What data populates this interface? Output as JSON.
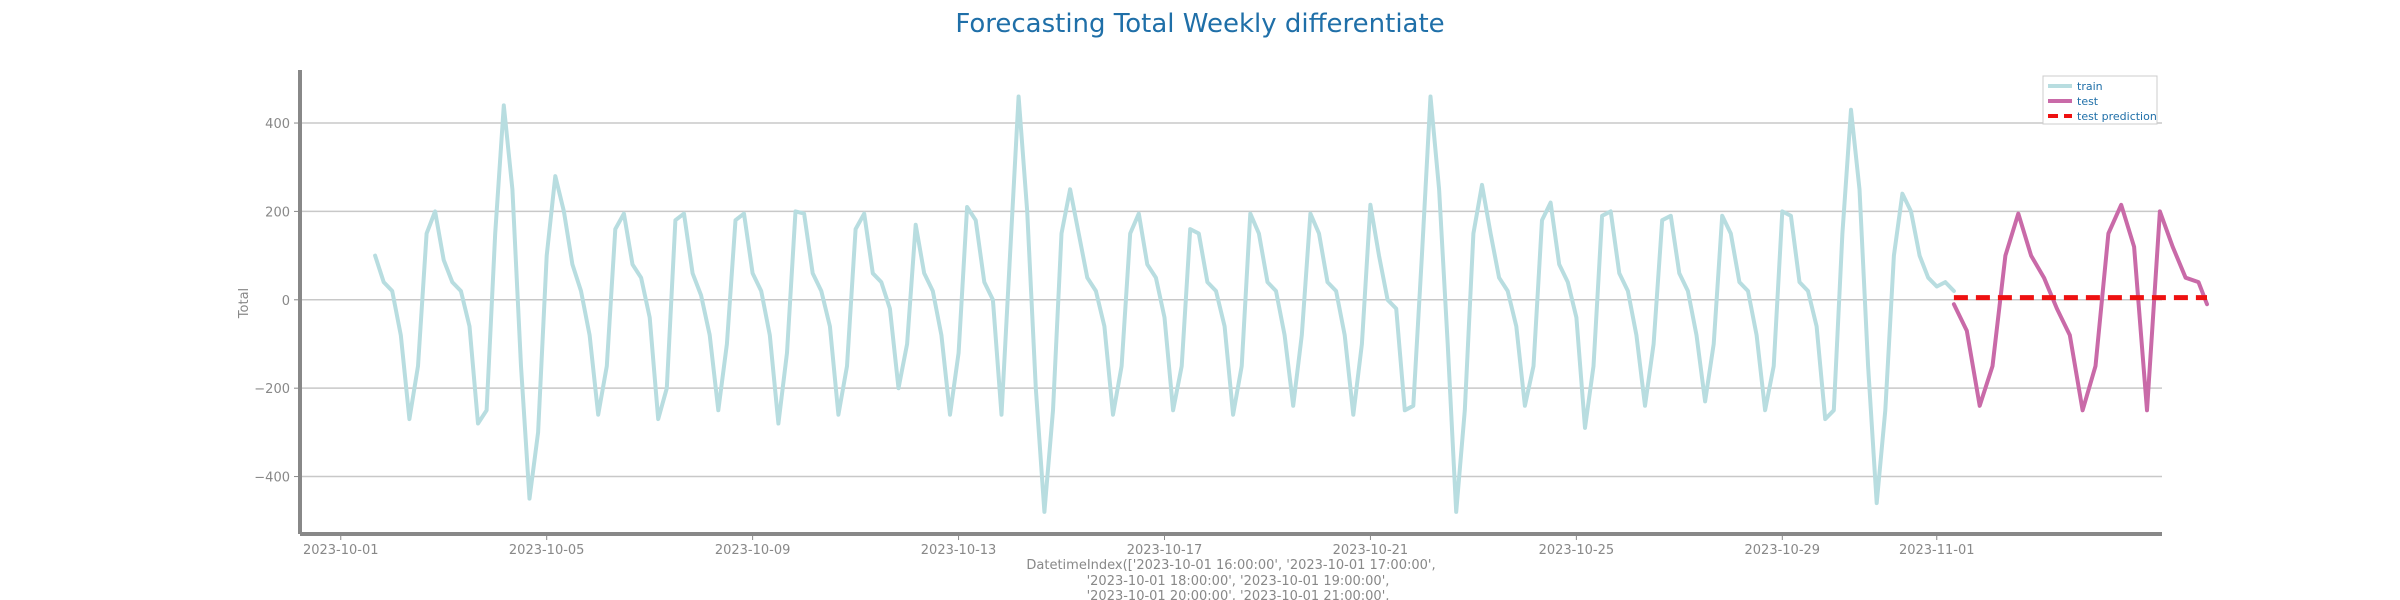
{
  "chart_data": {
    "type": "line",
    "title": "Forecasting Total Weekly differentiate",
    "ylabel": "Total",
    "xlabel_lines": [
      "DatetimeIndex(['2023-10-01 16:00:00', '2023-10-01 17:00:00',",
      "'2023-10-01 18:00:00', '2023-10-01 19:00:00',",
      "'2023-10-01 20:00:00', '2023-10-01 21:00:00',"
    ],
    "x_ticks": [
      "2023-10-01",
      "2023-10-05",
      "2023-10-09",
      "2023-10-13",
      "2023-10-17",
      "2023-10-21",
      "2023-10-25",
      "2023-10-29",
      "2023-11-01"
    ],
    "y_ticks": [
      -400,
      -200,
      0,
      200,
      400
    ],
    "xlim": [
      "2023-09-30T05:00:00",
      "2023-11-05T09:00:00"
    ],
    "ylim": [
      -530,
      520
    ],
    "grid": "horizontal",
    "legend_position": "top-right",
    "colors": {
      "train": "#b8dde0",
      "test": "#c96aa8",
      "prediction": "#ee1111",
      "title": "#1f6fa8",
      "axis": "#888888"
    },
    "series": [
      {
        "name": "train",
        "style": "solid",
        "points": [
          [
            "2023-10-01T16:00",
            100
          ],
          [
            "2023-10-01T20:00",
            40
          ],
          [
            "2023-10-02T00:00",
            20
          ],
          [
            "2023-10-02T04:00",
            -80
          ],
          [
            "2023-10-02T08:00",
            -270
          ],
          [
            "2023-10-02T12:00",
            -150
          ],
          [
            "2023-10-02T16:00",
            150
          ],
          [
            "2023-10-02T20:00",
            200
          ],
          [
            "2023-10-03T00:00",
            90
          ],
          [
            "2023-10-03T04:00",
            40
          ],
          [
            "2023-10-03T08:00",
            20
          ],
          [
            "2023-10-03T12:00",
            -60
          ],
          [
            "2023-10-03T16:00",
            -280
          ],
          [
            "2023-10-03T20:00",
            -250
          ],
          [
            "2023-10-04T00:00",
            150
          ],
          [
            "2023-10-04T04:00",
            440
          ],
          [
            "2023-10-04T08:00",
            250
          ],
          [
            "2023-10-04T12:00",
            -150
          ],
          [
            "2023-10-04T16:00",
            -450
          ],
          [
            "2023-10-04T20:00",
            -300
          ],
          [
            "2023-10-05T00:00",
            100
          ],
          [
            "2023-10-05T04:00",
            280
          ],
          [
            "2023-10-05T08:00",
            200
          ],
          [
            "2023-10-05T12:00",
            80
          ],
          [
            "2023-10-05T16:00",
            20
          ],
          [
            "2023-10-05T20:00",
            -80
          ],
          [
            "2023-10-06T00:00",
            -260
          ],
          [
            "2023-10-06T04:00",
            -150
          ],
          [
            "2023-10-06T08:00",
            160
          ],
          [
            "2023-10-06T12:00",
            195
          ],
          [
            "2023-10-06T16:00",
            80
          ],
          [
            "2023-10-06T20:00",
            50
          ],
          [
            "2023-10-07T00:00",
            -40
          ],
          [
            "2023-10-07T04:00",
            -270
          ],
          [
            "2023-10-07T08:00",
            -200
          ],
          [
            "2023-10-07T12:00",
            180
          ],
          [
            "2023-10-07T16:00",
            195
          ],
          [
            "2023-10-07T20:00",
            60
          ],
          [
            "2023-10-08T00:00",
            10
          ],
          [
            "2023-10-08T04:00",
            -80
          ],
          [
            "2023-10-08T08:00",
            -250
          ],
          [
            "2023-10-08T12:00",
            -100
          ],
          [
            "2023-10-08T16:00",
            180
          ],
          [
            "2023-10-08T20:00",
            195
          ],
          [
            "2023-10-09T00:00",
            60
          ],
          [
            "2023-10-09T04:00",
            20
          ],
          [
            "2023-10-09T08:00",
            -80
          ],
          [
            "2023-10-09T12:00",
            -280
          ],
          [
            "2023-10-09T16:00",
            -120
          ],
          [
            "2023-10-09T20:00",
            200
          ],
          [
            "2023-10-10T00:00",
            195
          ],
          [
            "2023-10-10T04:00",
            60
          ],
          [
            "2023-10-10T08:00",
            20
          ],
          [
            "2023-10-10T12:00",
            -60
          ],
          [
            "2023-10-10T16:00",
            -260
          ],
          [
            "2023-10-10T20:00",
            -150
          ],
          [
            "2023-10-11T00:00",
            160
          ],
          [
            "2023-10-11T04:00",
            195
          ],
          [
            "2023-10-11T08:00",
            60
          ],
          [
            "2023-10-11T12:00",
            40
          ],
          [
            "2023-10-11T16:00",
            -20
          ],
          [
            "2023-10-11T20:00",
            -200
          ],
          [
            "2023-10-12T00:00",
            -100
          ],
          [
            "2023-10-12T04:00",
            170
          ],
          [
            "2023-10-12T08:00",
            60
          ],
          [
            "2023-10-12T12:00",
            20
          ],
          [
            "2023-10-12T16:00",
            -80
          ],
          [
            "2023-10-12T20:00",
            -260
          ],
          [
            "2023-10-13T00:00",
            -120
          ],
          [
            "2023-10-13T04:00",
            210
          ],
          [
            "2023-10-13T08:00",
            180
          ],
          [
            "2023-10-13T12:00",
            40
          ],
          [
            "2023-10-13T16:00",
            0
          ],
          [
            "2023-10-13T20:00",
            -260
          ],
          [
            "2023-10-14T00:00",
            100
          ],
          [
            "2023-10-14T04:00",
            460
          ],
          [
            "2023-10-14T08:00",
            200
          ],
          [
            "2023-10-14T12:00",
            -200
          ],
          [
            "2023-10-14T16:00",
            -480
          ],
          [
            "2023-10-14T20:00",
            -250
          ],
          [
            "2023-10-15T00:00",
            150
          ],
          [
            "2023-10-15T04:00",
            250
          ],
          [
            "2023-10-15T08:00",
            150
          ],
          [
            "2023-10-15T12:00",
            50
          ],
          [
            "2023-10-15T16:00",
            20
          ],
          [
            "2023-10-15T20:00",
            -60
          ],
          [
            "2023-10-16T00:00",
            -260
          ],
          [
            "2023-10-16T04:00",
            -150
          ],
          [
            "2023-10-16T08:00",
            150
          ],
          [
            "2023-10-16T12:00",
            195
          ],
          [
            "2023-10-16T16:00",
            80
          ],
          [
            "2023-10-16T20:00",
            50
          ],
          [
            "2023-10-17T00:00",
            -40
          ],
          [
            "2023-10-17T04:00",
            -250
          ],
          [
            "2023-10-17T08:00",
            -150
          ],
          [
            "2023-10-17T12:00",
            160
          ],
          [
            "2023-10-17T16:00",
            150
          ],
          [
            "2023-10-17T20:00",
            40
          ],
          [
            "2023-10-18T00:00",
            20
          ],
          [
            "2023-10-18T04:00",
            -60
          ],
          [
            "2023-10-18T08:00",
            -260
          ],
          [
            "2023-10-18T12:00",
            -150
          ],
          [
            "2023-10-18T16:00",
            195
          ],
          [
            "2023-10-18T20:00",
            150
          ],
          [
            "2023-10-19T00:00",
            40
          ],
          [
            "2023-10-19T04:00",
            20
          ],
          [
            "2023-10-19T08:00",
            -80
          ],
          [
            "2023-10-19T12:00",
            -240
          ],
          [
            "2023-10-19T16:00",
            -80
          ],
          [
            "2023-10-19T20:00",
            195
          ],
          [
            "2023-10-20T00:00",
            150
          ],
          [
            "2023-10-20T04:00",
            40
          ],
          [
            "2023-10-20T08:00",
            20
          ],
          [
            "2023-10-20T12:00",
            -80
          ],
          [
            "2023-10-20T16:00",
            -260
          ],
          [
            "2023-10-20T20:00",
            -100
          ],
          [
            "2023-10-21T00:00",
            215
          ],
          [
            "2023-10-21T04:00",
            100
          ],
          [
            "2023-10-21T08:00",
            0
          ],
          [
            "2023-10-21T12:00",
            -20
          ],
          [
            "2023-10-21T16:00",
            -250
          ],
          [
            "2023-10-21T20:00",
            -240
          ],
          [
            "2023-10-22T00:00",
            100
          ],
          [
            "2023-10-22T04:00",
            460
          ],
          [
            "2023-10-22T08:00",
            250
          ],
          [
            "2023-10-22T12:00",
            -100
          ],
          [
            "2023-10-22T16:00",
            -480
          ],
          [
            "2023-10-22T20:00",
            -250
          ],
          [
            "2023-10-23T00:00",
            150
          ],
          [
            "2023-10-23T04:00",
            260
          ],
          [
            "2023-10-23T08:00",
            150
          ],
          [
            "2023-10-23T12:00",
            50
          ],
          [
            "2023-10-23T16:00",
            20
          ],
          [
            "2023-10-23T20:00",
            -60
          ],
          [
            "2023-10-24T00:00",
            -240
          ],
          [
            "2023-10-24T04:00",
            -150
          ],
          [
            "2023-10-24T08:00",
            180
          ],
          [
            "2023-10-24T12:00",
            220
          ],
          [
            "2023-10-24T16:00",
            80
          ],
          [
            "2023-10-24T20:00",
            40
          ],
          [
            "2023-10-25T00:00",
            -40
          ],
          [
            "2023-10-25T04:00",
            -290
          ],
          [
            "2023-10-25T08:00",
            -150
          ],
          [
            "2023-10-25T12:00",
            190
          ],
          [
            "2023-10-25T16:00",
            200
          ],
          [
            "2023-10-25T20:00",
            60
          ],
          [
            "2023-10-26T00:00",
            20
          ],
          [
            "2023-10-26T04:00",
            -80
          ],
          [
            "2023-10-26T08:00",
            -240
          ],
          [
            "2023-10-26T12:00",
            -100
          ],
          [
            "2023-10-26T16:00",
            180
          ],
          [
            "2023-10-26T20:00",
            190
          ],
          [
            "2023-10-27T00:00",
            60
          ],
          [
            "2023-10-27T04:00",
            20
          ],
          [
            "2023-10-27T08:00",
            -80
          ],
          [
            "2023-10-27T12:00",
            -230
          ],
          [
            "2023-10-27T16:00",
            -100
          ],
          [
            "2023-10-27T20:00",
            190
          ],
          [
            "2023-10-28T00:00",
            150
          ],
          [
            "2023-10-28T04:00",
            40
          ],
          [
            "2023-10-28T08:00",
            20
          ],
          [
            "2023-10-28T12:00",
            -80
          ],
          [
            "2023-10-28T16:00",
            -250
          ],
          [
            "2023-10-28T20:00",
            -150
          ],
          [
            "2023-10-29T00:00",
            200
          ],
          [
            "2023-10-29T04:00",
            190
          ],
          [
            "2023-10-29T08:00",
            40
          ],
          [
            "2023-10-29T12:00",
            20
          ],
          [
            "2023-10-29T16:00",
            -60
          ],
          [
            "2023-10-29T20:00",
            -270
          ],
          [
            "2023-10-30T00:00",
            -250
          ],
          [
            "2023-10-30T04:00",
            150
          ],
          [
            "2023-10-30T08:00",
            430
          ],
          [
            "2023-10-30T12:00",
            250
          ],
          [
            "2023-10-30T16:00",
            -150
          ],
          [
            "2023-10-30T20:00",
            -460
          ],
          [
            "2023-10-31T00:00",
            -250
          ],
          [
            "2023-10-31T04:00",
            100
          ],
          [
            "2023-10-31T08:00",
            240
          ],
          [
            "2023-10-31T12:00",
            200
          ],
          [
            "2023-10-31T16:00",
            100
          ],
          [
            "2023-10-31T20:00",
            50
          ],
          [
            "2023-11-01T00:00",
            30
          ],
          [
            "2023-11-01T04:00",
            40
          ],
          [
            "2023-11-01T08:00",
            20
          ]
        ]
      },
      {
        "name": "test",
        "style": "solid",
        "points": [
          [
            "2023-11-01T08:00",
            -10
          ],
          [
            "2023-11-01T14:00",
            -70
          ],
          [
            "2023-11-01T20:00",
            -240
          ],
          [
            "2023-11-02T02:00",
            -150
          ],
          [
            "2023-11-02T08:00",
            100
          ],
          [
            "2023-11-02T14:00",
            195
          ],
          [
            "2023-11-02T20:00",
            100
          ],
          [
            "2023-11-03T02:00",
            50
          ],
          [
            "2023-11-03T08:00",
            -20
          ],
          [
            "2023-11-03T14:00",
            -80
          ],
          [
            "2023-11-03T20:00",
            -250
          ],
          [
            "2023-11-04T02:00",
            -150
          ],
          [
            "2023-11-04T08:00",
            150
          ],
          [
            "2023-11-04T14:00",
            215
          ],
          [
            "2023-11-04T20:00",
            120
          ],
          [
            "2023-11-05T02:00",
            -250
          ],
          [
            "2023-11-05T08:00",
            200
          ],
          [
            "2023-11-05T14:00",
            120
          ],
          [
            "2023-11-05T20:00",
            50
          ],
          [
            "2023-11-06T02:00",
            40
          ],
          [
            "2023-11-06T06:00",
            -10
          ]
        ]
      },
      {
        "name": "test prediction",
        "style": "dashed",
        "points": [
          [
            "2023-11-01T08:00",
            5
          ],
          [
            "2023-11-06T06:00",
            5
          ]
        ]
      }
    ]
  }
}
